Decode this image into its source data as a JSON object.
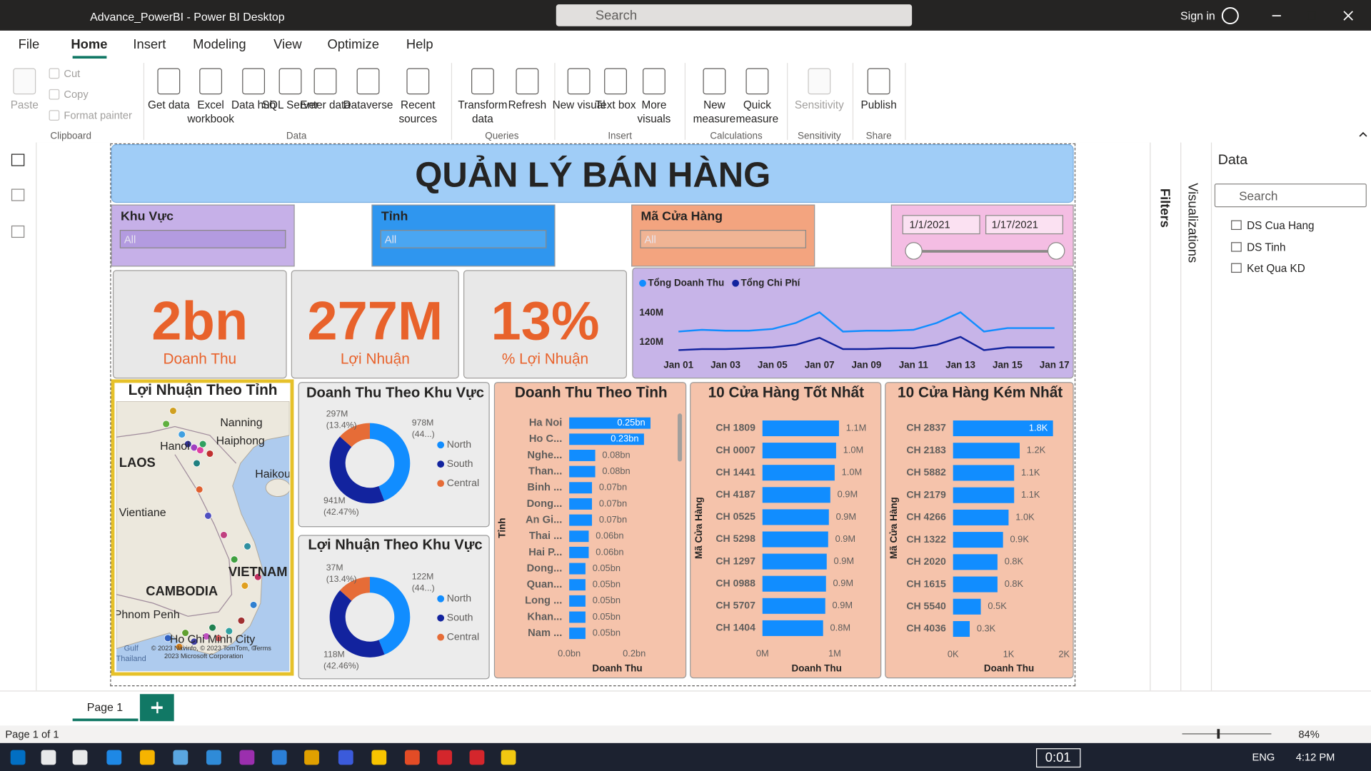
{
  "app": {
    "title": "Advance_PowerBI - Power BI Desktop",
    "search": "Search",
    "sign_in": "Sign in"
  },
  "menu": [
    "File",
    "Home",
    "Insert",
    "Modeling",
    "View",
    "Optimize",
    "Help"
  ],
  "ribbon": [
    {
      "group": "Clipboard",
      "items": [
        "Paste",
        "Cut",
        "Copy",
        "Format painter"
      ]
    },
    {
      "group": "Data",
      "items": [
        "Get data",
        "Excel workbook",
        "Data hub",
        "SQL Server",
        "Enter data",
        "Dataverse",
        "Recent sources"
      ]
    },
    {
      "group": "Queries",
      "items": [
        "Transform data",
        "Refresh"
      ]
    },
    {
      "group": "Insert",
      "items": [
        "New visual",
        "Text box",
        "More visuals"
      ]
    },
    {
      "group": "Calculations",
      "items": [
        "New measure",
        "Quick measure"
      ]
    },
    {
      "group": "Sensitivity",
      "items": [
        "Sensitivity"
      ]
    },
    {
      "group": "Share",
      "items": [
        "Publish"
      ]
    }
  ],
  "report": {
    "title": "QUẢN LÝ BÁN HÀNG",
    "slicers": [
      {
        "label": "Khu Vực",
        "value": "All"
      },
      {
        "label": "Tỉnh",
        "value": "All"
      },
      {
        "label": "Mã Cửa Hàng",
        "value": "All"
      }
    ],
    "date_range": {
      "start": "1/1/2021",
      "end": "1/17/2021"
    },
    "cards": [
      {
        "value": "2bn",
        "label": "Doanh Thu"
      },
      {
        "value": "277M",
        "label": "Lợi Nhuận"
      },
      {
        "value": "13%",
        "label": "% Lợi Nhuận"
      }
    ],
    "line_chart": {
      "type": "line",
      "categories": [
        "Jan 01",
        null,
        "Jan 03",
        null,
        "Jan 05",
        null,
        "Jan 07",
        null,
        "Jan 09",
        null,
        "Jan 11",
        null,
        "Jan 13",
        null,
        "Jan 15",
        null,
        "Jan 17"
      ],
      "series": [
        {
          "name": "Tổng Doanh Thu",
          "color": "#118dff",
          "values": [
            127.3,
            128.5,
            127.9,
            127.9,
            129.1,
            133.3,
            140.6,
            127.3,
            127.9,
            127.9,
            128.5,
            133.3,
            140.6,
            127.3,
            129.7,
            129.7,
            129.7
          ]
        },
        {
          "name": "Tổng Chi Phí",
          "color": "#12239e",
          "values": [
            114.5,
            115.2,
            115.2,
            115.8,
            116.4,
            118.2,
            123.0,
            115.2,
            115.2,
            115.8,
            115.8,
            118.2,
            123.6,
            114.5,
            116.4,
            116.4,
            116.4
          ]
        }
      ],
      "ylim": [
        110,
        151
      ],
      "yticks": [
        {
          "value": 120,
          "label": "120M"
        },
        {
          "value": 140,
          "label": "140M"
        }
      ]
    },
    "map": {
      "title": "Lợi Nhuận Theo Tỉnh",
      "places": [
        "Nanning",
        "Haiphong",
        "Hanoi",
        "Haikou",
        "LAOS",
        "Vientiane",
        "CAMBODIA",
        "VIETNAM",
        "Phnom Penh",
        "Ho Chi Minh City",
        "Gulf",
        "Thailand"
      ],
      "attribution": [
        "© 2023 Navinfo, © 2023 TomTom, ©",
        "2023 Microsoft Corporation",
        "Terms"
      ]
    },
    "donuts": [
      {
        "type": "pie",
        "title": "Doanh Thu Theo Khu Vực",
        "categories": [
          "North",
          "South",
          "Central"
        ],
        "colors": [
          "#118dff",
          "#12239e",
          "#e66c37"
        ],
        "values": [
          978,
          941,
          297
        ],
        "value_labels": [
          "978M",
          "941M",
          "297M"
        ],
        "percent_labels": [
          "(44...)",
          "(42.47%)",
          "(13.4%)"
        ]
      },
      {
        "type": "pie",
        "title": "Lợi Nhuận Theo Khu Vực",
        "categories": [
          "North",
          "South",
          "Central"
        ],
        "colors": [
          "#118dff",
          "#12239e",
          "#e66c37"
        ],
        "values": [
          122,
          118,
          37
        ],
        "value_labels": [
          "122M",
          "118M",
          "37M"
        ],
        "percent_labels": [
          "(44...)",
          "(42.46%)",
          "(13.4%)"
        ]
      }
    ],
    "bar_charts": [
      {
        "type": "bar",
        "title": "Doanh Thu Theo Tỉnh",
        "x_label": "Doanh Thu",
        "y_label": "Tỉnh",
        "color": "#118dff",
        "categories": [
          "Ha Noi",
          "Ho C...",
          "Nghe...",
          "Than...",
          "Binh ...",
          "Dong...",
          "An Gi...",
          "Thai ...",
          "Hai P...",
          "Dong...",
          "Quan...",
          "Long ...",
          "Khan...",
          "Nam ..."
        ],
        "values": [
          0.25,
          0.23,
          0.08,
          0.08,
          0.07,
          0.07,
          0.07,
          0.06,
          0.06,
          0.05,
          0.05,
          0.05,
          0.05,
          0.05
        ],
        "value_labels": [
          "0.25bn",
          "0.23bn",
          "0.08bn",
          "0.08bn",
          "0.07bn",
          "0.07bn",
          "0.07bn",
          "0.06bn",
          "0.06bn",
          "0.05bn",
          "0.05bn",
          "0.05bn",
          "0.05bn",
          "0.05bn"
        ],
        "xlim": [
          0,
          0.32
        ],
        "xticks": [
          {
            "value": 0,
            "label": "0.0bn"
          },
          {
            "value": 0.2,
            "label": "0.2bn"
          }
        ]
      },
      {
        "type": "bar",
        "title": "10 Cửa Hàng Tốt Nhất",
        "x_label": "Doanh Thu",
        "y_label": "Mã Cửa Hàng",
        "color": "#118dff",
        "categories": [
          "CH 1809",
          "CH 0007",
          "CH 1441",
          "CH 4187",
          "CH 0525",
          "CH 5298",
          "CH 1297",
          "CH 0988",
          "CH 5707",
          "CH 1404"
        ],
        "values": [
          1.06,
          1.02,
          1.0,
          0.94,
          0.92,
          0.91,
          0.89,
          0.88,
          0.87,
          0.84
        ],
        "value_labels": [
          "1.1M",
          "1.0M",
          "1.0M",
          "0.9M",
          "0.9M",
          "0.9M",
          "0.9M",
          "0.9M",
          "0.9M",
          "0.8M"
        ],
        "xlim": [
          0,
          1.55
        ],
        "xticks": [
          {
            "value": 0,
            "label": "0M"
          },
          {
            "value": 1,
            "label": "1M"
          }
        ]
      },
      {
        "type": "bar",
        "title": "10 Cửa Hàng Kém Nhất",
        "x_label": "Doanh Thu",
        "y_label": "Mã Cửa Hàng",
        "color": "#118dff",
        "categories": [
          "CH 2837",
          "CH 2183",
          "CH 5882",
          "CH 2179",
          "CH 4266",
          "CH 1322",
          "CH 2020",
          "CH 1615",
          "CH 5540",
          "CH 4036"
        ],
        "values": [
          1.8,
          1.2,
          1.1,
          1.1,
          1.0,
          0.9,
          0.8,
          0.8,
          0.5,
          0.3
        ],
        "value_labels": [
          "1.8K",
          "1.2K",
          "1.1K",
          "1.1K",
          "1.0K",
          "0.9K",
          "0.8K",
          "0.8K",
          "0.5K",
          "0.3K"
        ],
        "xlim": [
          0,
          2
        ],
        "xticks": [
          {
            "value": 0,
            "label": "0K"
          },
          {
            "value": 1,
            "label": "1K"
          },
          {
            "value": 2,
            "label": "2K"
          }
        ]
      }
    ]
  },
  "panes": {
    "filters": "Filters",
    "visualizations": "Visualizations",
    "data": "Data",
    "search": "Search",
    "tables": [
      "DS Cua Hang",
      "DS Tinh",
      "Ket Qua KD"
    ]
  },
  "pages": [
    "Page 1"
  ],
  "status": {
    "page": "Page 1 of 1",
    "zoom": "84%"
  },
  "taskbar": {
    "timer": "0:01",
    "lang": "ENG",
    "time": "4:12 PM"
  }
}
